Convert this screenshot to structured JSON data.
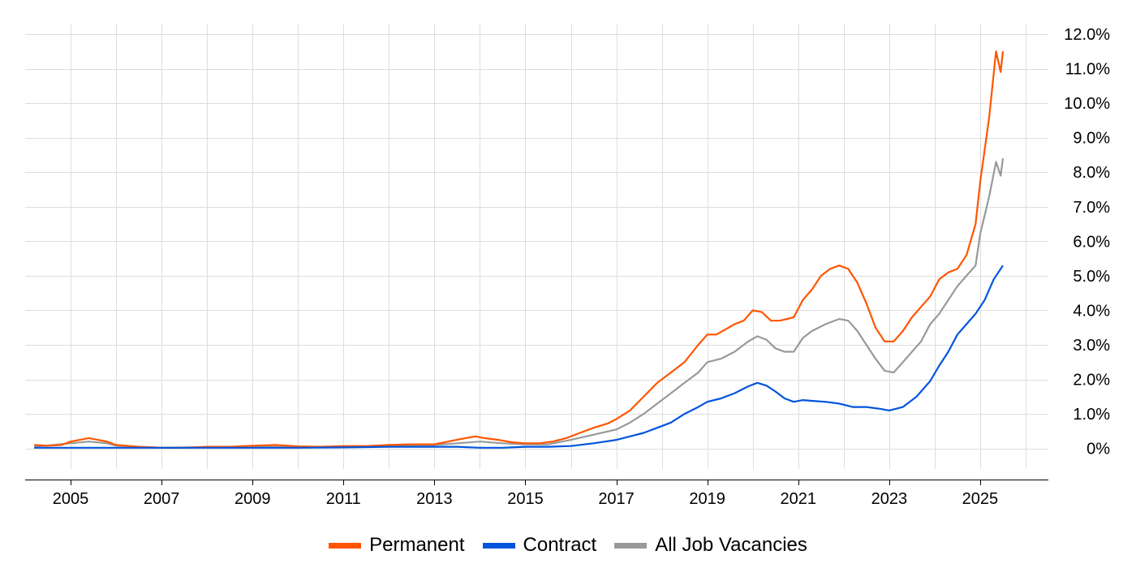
{
  "chart_data": {
    "type": "line",
    "title": "",
    "xlabel": "",
    "ylabel": "",
    "x_ticks": [
      "2005",
      "2007",
      "2009",
      "2011",
      "2013",
      "2015",
      "2017",
      "2019",
      "2021",
      "2023",
      "2025"
    ],
    "y_ticks": [
      "0%",
      "1.0%",
      "2.0%",
      "3.0%",
      "4.0%",
      "5.0%",
      "6.0%",
      "7.0%",
      "8.0%",
      "9.0%",
      "10.0%",
      "11.0%",
      "12.0%"
    ],
    "xlim": [
      2004.0,
      2026.5
    ],
    "ylim": [
      -0.9,
      12.4
    ],
    "grid": true,
    "legend_position": "bottom",
    "series": [
      {
        "name": "Permanent",
        "color": "#ff5500",
        "x": [
          2004.2,
          2004.5,
          2004.8,
          2005.0,
          2005.2,
          2005.4,
          2005.6,
          2005.8,
          2006.0,
          2006.5,
          2007.0,
          2007.5,
          2008.0,
          2008.5,
          2009.0,
          2009.5,
          2010.0,
          2010.5,
          2011.0,
          2011.5,
          2012.0,
          2012.5,
          2013.0,
          2013.3,
          2013.6,
          2013.9,
          2014.1,
          2014.4,
          2014.7,
          2015.0,
          2015.3,
          2015.6,
          2015.9,
          2016.2,
          2016.5,
          2016.8,
          2017.0,
          2017.3,
          2017.6,
          2017.9,
          2018.2,
          2018.5,
          2018.8,
          2019.0,
          2019.2,
          2019.4,
          2019.6,
          2019.8,
          2020.0,
          2020.2,
          2020.4,
          2020.6,
          2020.9,
          2021.1,
          2021.3,
          2021.5,
          2021.7,
          2021.9,
          2022.1,
          2022.3,
          2022.5,
          2022.7,
          2022.9,
          2023.1,
          2023.3,
          2023.5,
          2023.7,
          2023.9,
          2024.1,
          2024.3,
          2024.5,
          2024.7,
          2024.9,
          2025.0,
          2025.2,
          2025.35,
          2025.45,
          2025.5
        ],
        "values": [
          0.1,
          0.08,
          0.1,
          0.2,
          0.25,
          0.3,
          0.25,
          0.2,
          0.1,
          0.05,
          0.02,
          0.02,
          0.05,
          0.05,
          0.08,
          0.1,
          0.06,
          0.05,
          0.07,
          0.07,
          0.1,
          0.12,
          0.12,
          0.2,
          0.28,
          0.35,
          0.3,
          0.25,
          0.18,
          0.15,
          0.15,
          0.2,
          0.3,
          0.45,
          0.6,
          0.72,
          0.85,
          1.1,
          1.5,
          1.9,
          2.2,
          2.5,
          3.0,
          3.3,
          3.3,
          3.45,
          3.6,
          3.7,
          4.0,
          3.95,
          3.7,
          3.7,
          3.8,
          4.3,
          4.6,
          5.0,
          5.2,
          5.3,
          5.2,
          4.8,
          4.2,
          3.5,
          3.1,
          3.1,
          3.4,
          3.8,
          4.1,
          4.4,
          4.9,
          5.1,
          5.2,
          5.6,
          6.5,
          7.7,
          9.6,
          11.5,
          10.9,
          11.5
        ]
      },
      {
        "name": "Contract",
        "color": "#0055dd",
        "x": [
          2004.2,
          2005.0,
          2006.0,
          2007.0,
          2008.0,
          2009.0,
          2010.0,
          2011.0,
          2012.0,
          2013.0,
          2013.5,
          2014.0,
          2014.5,
          2015.0,
          2015.5,
          2016.0,
          2016.5,
          2017.0,
          2017.3,
          2017.6,
          2017.9,
          2018.2,
          2018.5,
          2018.8,
          2019.0,
          2019.3,
          2019.6,
          2019.9,
          2020.1,
          2020.3,
          2020.5,
          2020.7,
          2020.9,
          2021.1,
          2021.3,
          2021.6,
          2021.9,
          2022.2,
          2022.5,
          2022.8,
          2023.0,
          2023.3,
          2023.6,
          2023.9,
          2024.1,
          2024.3,
          2024.5,
          2024.7,
          2024.9,
          2025.1,
          2025.3,
          2025.5
        ],
        "values": [
          0.02,
          0.02,
          0.02,
          0.02,
          0.02,
          0.02,
          0.02,
          0.03,
          0.05,
          0.05,
          0.05,
          0.02,
          0.02,
          0.05,
          0.05,
          0.07,
          0.15,
          0.25,
          0.35,
          0.45,
          0.6,
          0.75,
          1.0,
          1.2,
          1.35,
          1.45,
          1.6,
          1.8,
          1.9,
          1.82,
          1.65,
          1.45,
          1.35,
          1.4,
          1.38,
          1.35,
          1.3,
          1.2,
          1.2,
          1.15,
          1.1,
          1.2,
          1.5,
          1.95,
          2.4,
          2.8,
          3.3,
          3.6,
          3.9,
          4.3,
          4.9,
          5.3
        ]
      },
      {
        "name": "All Job Vacancies",
        "color": "#999999",
        "x": [
          2004.2,
          2005.0,
          2005.4,
          2005.8,
          2006.0,
          2007.0,
          2008.0,
          2009.0,
          2010.0,
          2011.0,
          2012.0,
          2013.0,
          2013.5,
          2014.0,
          2014.5,
          2015.0,
          2015.5,
          2016.0,
          2016.5,
          2017.0,
          2017.3,
          2017.6,
          2017.9,
          2018.2,
          2018.5,
          2018.8,
          2019.0,
          2019.3,
          2019.6,
          2019.9,
          2020.1,
          2020.3,
          2020.5,
          2020.7,
          2020.9,
          2021.1,
          2021.3,
          2021.6,
          2021.9,
          2022.1,
          2022.3,
          2022.5,
          2022.7,
          2022.9,
          2023.1,
          2023.3,
          2023.5,
          2023.7,
          2023.9,
          2024.1,
          2024.3,
          2024.5,
          2024.7,
          2024.9,
          2025.0,
          2025.2,
          2025.35,
          2025.45,
          2025.5
        ],
        "values": [
          0.05,
          0.15,
          0.2,
          0.15,
          0.08,
          0.02,
          0.04,
          0.05,
          0.04,
          0.05,
          0.08,
          0.1,
          0.15,
          0.2,
          0.15,
          0.12,
          0.12,
          0.25,
          0.4,
          0.55,
          0.75,
          1.0,
          1.3,
          1.6,
          1.9,
          2.2,
          2.5,
          2.6,
          2.8,
          3.1,
          3.25,
          3.15,
          2.9,
          2.8,
          2.8,
          3.2,
          3.4,
          3.6,
          3.75,
          3.7,
          3.4,
          3.0,
          2.6,
          2.25,
          2.2,
          2.5,
          2.8,
          3.1,
          3.6,
          3.9,
          4.3,
          4.7,
          5.0,
          5.3,
          6.2,
          7.3,
          8.3,
          7.9,
          8.4
        ]
      }
    ]
  }
}
